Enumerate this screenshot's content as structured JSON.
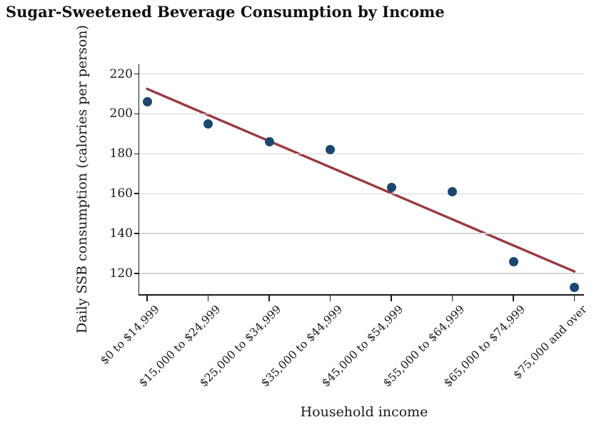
{
  "figure": {
    "background_color": "#ffffff",
    "text_color": "#1a1a1a"
  },
  "chart_data": {
    "type": "scatter",
    "title": "Sugar-Sweetened Beverage Consumption by Income",
    "xlabel": "Household income",
    "ylabel": "Daily SSB consumption (calories per person)",
    "categories": [
      "$0 to $14,999",
      "$15,000 to $24,999",
      "$25,000 to $34,999",
      "$35,000 to $44,999",
      "$45,000 to $54,999",
      "$55,000 to $64,999",
      "$65,000 to $74,999",
      "$75,000 and over"
    ],
    "values": [
      206,
      195,
      186,
      182,
      163,
      161,
      126,
      113
    ],
    "trend_line": {
      "start_value": 212.5,
      "end_value": 121,
      "color": "#9A3A40"
    },
    "yticks": [
      120,
      140,
      160,
      180,
      200,
      220
    ],
    "ylim": [
      110,
      225
    ],
    "grid": "horizontal",
    "legend": "none",
    "point_color": "#1A476F",
    "gridline_color": "#d5d5d5",
    "axis_color": "#1a1a1a"
  }
}
